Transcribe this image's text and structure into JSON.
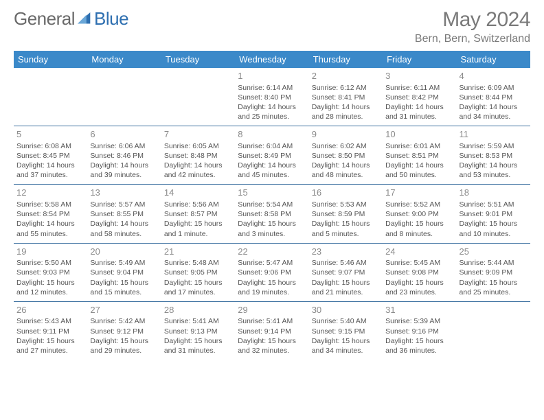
{
  "brand": {
    "word1": "General",
    "word2": "Blue"
  },
  "title": "May 2024",
  "location": "Bern, Bern, Switzerland",
  "colors": {
    "header_bg": "#3b89c9",
    "header_text": "#ffffff",
    "row_border": "#3b6fa0",
    "text": "#555555",
    "daynum": "#8a8a8a",
    "title": "#7a7a7a",
    "brand_blue": "#2e6fb0"
  },
  "weekdays": [
    "Sunday",
    "Monday",
    "Tuesday",
    "Wednesday",
    "Thursday",
    "Friday",
    "Saturday"
  ],
  "weeks": [
    [
      null,
      null,
      null,
      {
        "n": "1",
        "sr": "6:14 AM",
        "ss": "8:40 PM",
        "dl": "14 hours and 25 minutes."
      },
      {
        "n": "2",
        "sr": "6:12 AM",
        "ss": "8:41 PM",
        "dl": "14 hours and 28 minutes."
      },
      {
        "n": "3",
        "sr": "6:11 AM",
        "ss": "8:42 PM",
        "dl": "14 hours and 31 minutes."
      },
      {
        "n": "4",
        "sr": "6:09 AM",
        "ss": "8:44 PM",
        "dl": "14 hours and 34 minutes."
      }
    ],
    [
      {
        "n": "5",
        "sr": "6:08 AM",
        "ss": "8:45 PM",
        "dl": "14 hours and 37 minutes."
      },
      {
        "n": "6",
        "sr": "6:06 AM",
        "ss": "8:46 PM",
        "dl": "14 hours and 39 minutes."
      },
      {
        "n": "7",
        "sr": "6:05 AM",
        "ss": "8:48 PM",
        "dl": "14 hours and 42 minutes."
      },
      {
        "n": "8",
        "sr": "6:04 AM",
        "ss": "8:49 PM",
        "dl": "14 hours and 45 minutes."
      },
      {
        "n": "9",
        "sr": "6:02 AM",
        "ss": "8:50 PM",
        "dl": "14 hours and 48 minutes."
      },
      {
        "n": "10",
        "sr": "6:01 AM",
        "ss": "8:51 PM",
        "dl": "14 hours and 50 minutes."
      },
      {
        "n": "11",
        "sr": "5:59 AM",
        "ss": "8:53 PM",
        "dl": "14 hours and 53 minutes."
      }
    ],
    [
      {
        "n": "12",
        "sr": "5:58 AM",
        "ss": "8:54 PM",
        "dl": "14 hours and 55 minutes."
      },
      {
        "n": "13",
        "sr": "5:57 AM",
        "ss": "8:55 PM",
        "dl": "14 hours and 58 minutes."
      },
      {
        "n": "14",
        "sr": "5:56 AM",
        "ss": "8:57 PM",
        "dl": "15 hours and 1 minute."
      },
      {
        "n": "15",
        "sr": "5:54 AM",
        "ss": "8:58 PM",
        "dl": "15 hours and 3 minutes."
      },
      {
        "n": "16",
        "sr": "5:53 AM",
        "ss": "8:59 PM",
        "dl": "15 hours and 5 minutes."
      },
      {
        "n": "17",
        "sr": "5:52 AM",
        "ss": "9:00 PM",
        "dl": "15 hours and 8 minutes."
      },
      {
        "n": "18",
        "sr": "5:51 AM",
        "ss": "9:01 PM",
        "dl": "15 hours and 10 minutes."
      }
    ],
    [
      {
        "n": "19",
        "sr": "5:50 AM",
        "ss": "9:03 PM",
        "dl": "15 hours and 12 minutes."
      },
      {
        "n": "20",
        "sr": "5:49 AM",
        "ss": "9:04 PM",
        "dl": "15 hours and 15 minutes."
      },
      {
        "n": "21",
        "sr": "5:48 AM",
        "ss": "9:05 PM",
        "dl": "15 hours and 17 minutes."
      },
      {
        "n": "22",
        "sr": "5:47 AM",
        "ss": "9:06 PM",
        "dl": "15 hours and 19 minutes."
      },
      {
        "n": "23",
        "sr": "5:46 AM",
        "ss": "9:07 PM",
        "dl": "15 hours and 21 minutes."
      },
      {
        "n": "24",
        "sr": "5:45 AM",
        "ss": "9:08 PM",
        "dl": "15 hours and 23 minutes."
      },
      {
        "n": "25",
        "sr": "5:44 AM",
        "ss": "9:09 PM",
        "dl": "15 hours and 25 minutes."
      }
    ],
    [
      {
        "n": "26",
        "sr": "5:43 AM",
        "ss": "9:11 PM",
        "dl": "15 hours and 27 minutes."
      },
      {
        "n": "27",
        "sr": "5:42 AM",
        "ss": "9:12 PM",
        "dl": "15 hours and 29 minutes."
      },
      {
        "n": "28",
        "sr": "5:41 AM",
        "ss": "9:13 PM",
        "dl": "15 hours and 31 minutes."
      },
      {
        "n": "29",
        "sr": "5:41 AM",
        "ss": "9:14 PM",
        "dl": "15 hours and 32 minutes."
      },
      {
        "n": "30",
        "sr": "5:40 AM",
        "ss": "9:15 PM",
        "dl": "15 hours and 34 minutes."
      },
      {
        "n": "31",
        "sr": "5:39 AM",
        "ss": "9:16 PM",
        "dl": "15 hours and 36 minutes."
      },
      null
    ]
  ],
  "labels": {
    "sunrise": "Sunrise:",
    "sunset": "Sunset:",
    "daylight": "Daylight:"
  }
}
